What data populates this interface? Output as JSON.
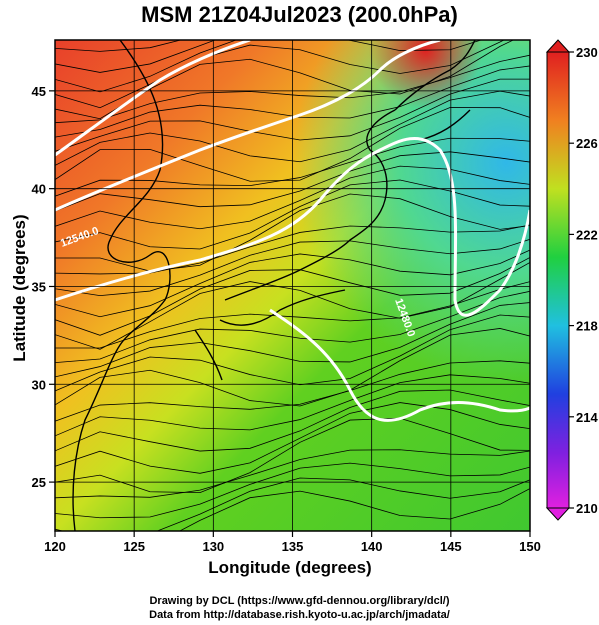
{
  "title": "MSM 21Z04Jul2023 (200.0hPa)",
  "xaxis": {
    "label": "Longitude (degrees)",
    "min": 120,
    "max": 150,
    "ticks": [
      120,
      125,
      130,
      135,
      140,
      145,
      150
    ]
  },
  "yaxis": {
    "label": "Latitude  (degrees)",
    "min": 22.5,
    "max": 47.6,
    "ticks": [
      25,
      30,
      35,
      40,
      45
    ]
  },
  "colorbar": {
    "min": 210,
    "max": 230,
    "ticks": [
      210,
      214,
      218,
      222,
      226,
      230
    ]
  },
  "contour_labels": [
    "12540.0",
    "12480.0"
  ],
  "credits": [
    "Drawing by DCL (https://www.gfd-dennou.org/library/dcl/)",
    "Data from http://database.rish.kyoto-u.ac.jp/arch/jmadata/"
  ],
  "colors": {
    "warm": "#e03a20",
    "mid": "#f0e020",
    "green": "#40d020",
    "cool": "#30c8e0"
  }
}
